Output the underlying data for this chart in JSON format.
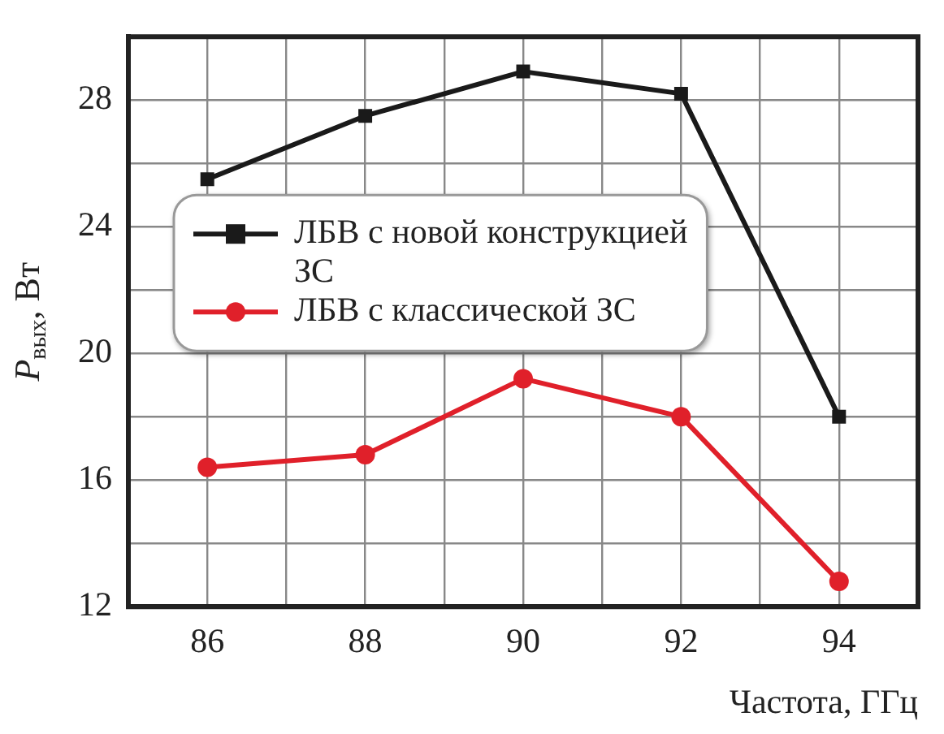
{
  "chart_data": {
    "type": "line",
    "xlabel": "Частота, ГГц",
    "ylabel": "P$_{вых}$, Вт",
    "x": [
      86,
      88,
      90,
      92,
      94
    ],
    "series": [
      {
        "name": "ЛБВ с новой конструкцией ЗС",
        "color": "#1a1a1a",
        "marker": "square",
        "values": [
          25.5,
          27.5,
          28.9,
          28.2,
          18.0
        ]
      },
      {
        "name": "ЛБВ с классической ЗС",
        "color": "#e0202a",
        "marker": "circle",
        "values": [
          16.4,
          16.8,
          19.2,
          18.0,
          12.8
        ]
      }
    ],
    "xlim": [
      85,
      95
    ],
    "ylim": [
      12,
      30
    ],
    "xticks": [
      86,
      {
        "value": 87,
        "label": null
      },
      88,
      {
        "value": 89,
        "label": null
      },
      90,
      {
        "value": 91,
        "label": null
      },
      92,
      {
        "value": 93,
        "label": null
      },
      94
    ],
    "yticks": [
      12,
      {
        "value": 14,
        "label": null
      },
      16,
      {
        "value": 18,
        "label": null
      },
      20,
      {
        "value": 22,
        "label": null
      },
      24,
      {
        "value": 26,
        "label": null
      },
      28
    ],
    "grid": true,
    "legend": "left",
    "line_style": "solid"
  }
}
